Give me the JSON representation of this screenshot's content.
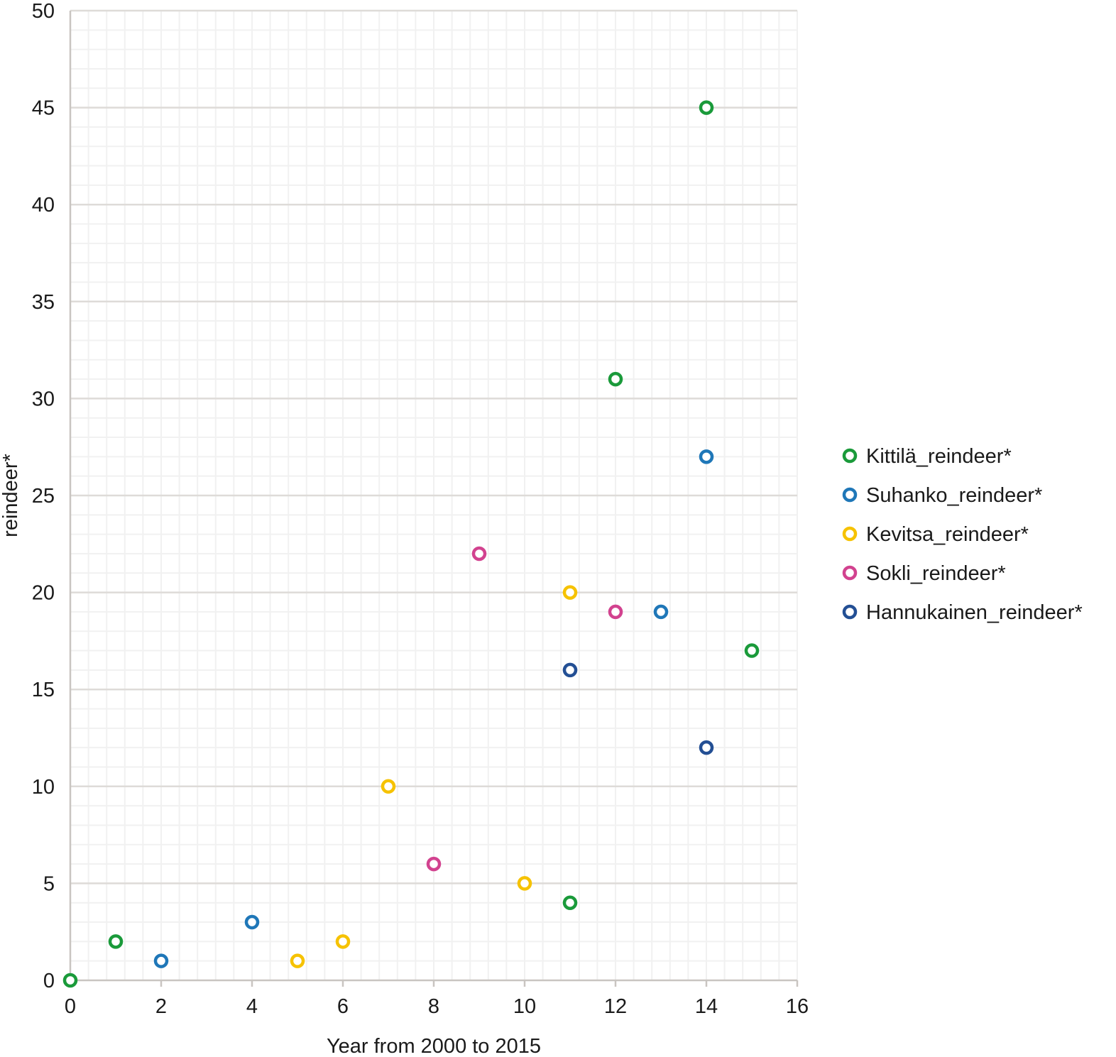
{
  "chart_data": {
    "type": "scatter",
    "title": "",
    "xlabel": "Year from 2000 to 2015",
    "ylabel": "reindeer*",
    "xlim": [
      0,
      16
    ],
    "ylim": [
      0,
      50
    ],
    "xticks": [
      0,
      2,
      4,
      6,
      8,
      10,
      12,
      14,
      16
    ],
    "yticks": [
      0,
      5,
      10,
      15,
      20,
      25,
      30,
      35,
      40,
      45,
      50
    ],
    "grid": true,
    "legend_position": "right",
    "marker": "open-circle",
    "series": [
      {
        "name": "Kittilä_reindeer*",
        "color": "#1a9a3a",
        "points": [
          [
            0,
            0
          ],
          [
            1,
            2
          ],
          [
            11,
            4
          ],
          [
            12,
            31
          ],
          [
            14,
            45
          ],
          [
            15,
            17
          ]
        ]
      },
      {
        "name": "Suhanko_reindeer*",
        "color": "#1f77b8",
        "points": [
          [
            2,
            1
          ],
          [
            4,
            3
          ],
          [
            13,
            19
          ],
          [
            14,
            27
          ]
        ]
      },
      {
        "name": "Kevitsa_reindeer*",
        "color": "#f6c200",
        "points": [
          [
            5,
            1
          ],
          [
            6,
            2
          ],
          [
            7,
            10
          ],
          [
            10,
            5
          ],
          [
            11,
            20
          ]
        ]
      },
      {
        "name": "Sokli_reindeer*",
        "color": "#d2428f",
        "points": [
          [
            8,
            6
          ],
          [
            9,
            22
          ],
          [
            12,
            19
          ]
        ]
      },
      {
        "name": "Hannukainen_reindeer*",
        "color": "#234f94",
        "points": [
          [
            11,
            16
          ],
          [
            14,
            12
          ]
        ]
      }
    ]
  }
}
